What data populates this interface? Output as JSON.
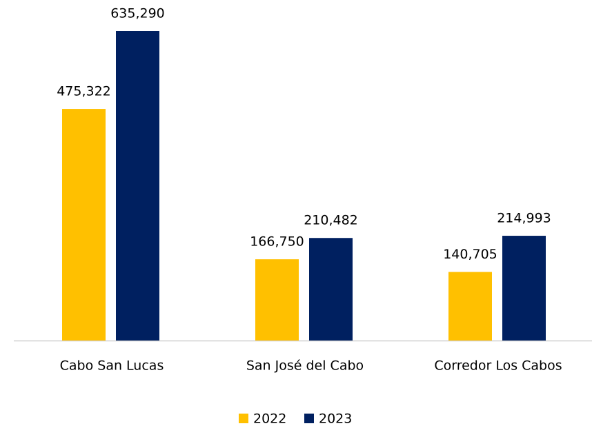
{
  "chart_data": {
    "type": "bar",
    "categories": [
      "Cabo San Lucas",
      "San José del Cabo",
      "Corredor Los Cabos"
    ],
    "series": [
      {
        "name": "2022",
        "color": "#FFC000",
        "values": [
          475322,
          166750,
          140705
        ],
        "value_labels": [
          "475,322",
          "166,750",
          "140,705"
        ]
      },
      {
        "name": "2023",
        "color": "#002060",
        "values": [
          635290,
          210482,
          214993
        ],
        "value_labels": [
          "635,290",
          "210,482",
          "214,993"
        ]
      }
    ],
    "legend": "bottom"
  }
}
